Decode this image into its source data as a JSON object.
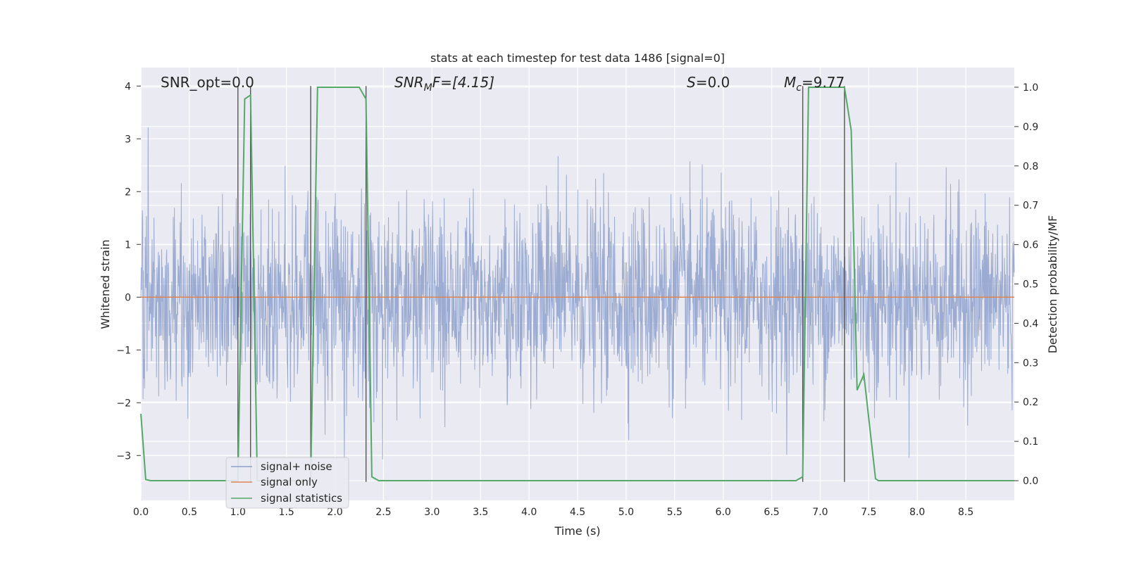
{
  "chart_data": {
    "type": "line",
    "title": "stats at each timestep for test data 1486 [signal=0]",
    "xlabel": "Time (s)",
    "ylabel": "Whitened strain",
    "y2label": "Detection probability/MF",
    "xlim": [
      0.0,
      9.0
    ],
    "ylim": [
      -3.85,
      4.35
    ],
    "y2lim": [
      -0.05,
      1.05
    ],
    "xticks": [
      "0.0",
      "0.5",
      "1.0",
      "1.5",
      "2.0",
      "2.5",
      "3.0",
      "3.5",
      "4.0",
      "4.5",
      "5.0",
      "5.5",
      "6.0",
      "6.5",
      "7.0",
      "7.5",
      "8.0",
      "8.5"
    ],
    "yticks": [
      "4",
      "3",
      "2",
      "1",
      "0",
      "−1",
      "−2",
      "−3"
    ],
    "y2ticks": [
      "1.0",
      "0.9",
      "0.8",
      "0.7",
      "0.6",
      "0.5",
      "0.4",
      "0.3",
      "0.2",
      "0.1",
      "0.0"
    ],
    "grid": true,
    "legend_position": "lower-left",
    "annotations": {
      "snr_opt": "SNR_opt=0.0",
      "snr_mf_prefix": "SNR",
      "snr_mf_sub": "M",
      "snr_mf_rest": "F=[4.15]",
      "s_italic": "S",
      "s_rest": "=0.0",
      "mc_italic": "M",
      "mc_sub": "c",
      "mc_rest": "=9.77"
    },
    "vlines_x": [
      1.0,
      1.13,
      1.75,
      2.32,
      6.82,
      7.25
    ],
    "vlines_y": [
      -3.5,
      4.0
    ],
    "series": [
      {
        "name": "signal+ noise",
        "color": "#8da0cb",
        "noise_std": 0.9,
        "noise_max": 3.9,
        "noise_min": -3.5,
        "samples": 2400,
        "seed": 1486
      },
      {
        "name": "signal only",
        "color": "#dd8452",
        "x": [
          0.0,
          9.0
        ],
        "y": [
          0.0,
          0.0
        ]
      },
      {
        "name": "signal statistics",
        "color": "#55a868",
        "axis": "right",
        "x": [
          0.0,
          0.05,
          0.1,
          1.0,
          1.07,
          1.13,
          1.2,
          1.75,
          1.82,
          2.25,
          2.32,
          2.38,
          2.45,
          6.75,
          6.82,
          6.88,
          7.25,
          7.32,
          7.38,
          7.45,
          7.57,
          7.6,
          9.0
        ],
        "y": [
          0.17,
          0.003,
          0.0,
          0.0,
          0.97,
          0.98,
          0.0,
          0.0,
          1.0,
          1.0,
          0.97,
          0.01,
          0.0,
          0.0,
          0.01,
          1.0,
          1.0,
          0.89,
          0.23,
          0.27,
          0.005,
          0.0,
          0.0
        ]
      }
    ]
  }
}
